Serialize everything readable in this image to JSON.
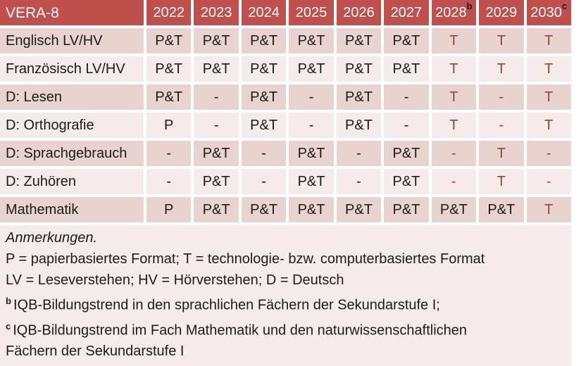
{
  "table": {
    "title": "VERA-8",
    "years": [
      "2022",
      "2023",
      "2024",
      "2025",
      "2026",
      "2027",
      "2028",
      "2029",
      "2030"
    ],
    "year_superscripts": [
      "",
      "",
      "",
      "",
      "",
      "",
      "b",
      "",
      "c"
    ],
    "rows": [
      {
        "label": "Englisch LV/HV",
        "cells": [
          {
            "t": "P&T",
            "red": false
          },
          {
            "t": "P&T",
            "red": false
          },
          {
            "t": "P&T",
            "red": false
          },
          {
            "t": "P&T",
            "red": false
          },
          {
            "t": "P&T",
            "red": false
          },
          {
            "t": "P&T",
            "red": false
          },
          {
            "t": "T",
            "red": true
          },
          {
            "t": "T",
            "red": true
          },
          {
            "t": "T",
            "red": true
          }
        ]
      },
      {
        "label": "Französisch LV/HV",
        "cells": [
          {
            "t": "P&T",
            "red": false
          },
          {
            "t": "P&T",
            "red": false
          },
          {
            "t": "P&T",
            "red": false
          },
          {
            "t": "P&T",
            "red": false
          },
          {
            "t": "P&T",
            "red": false
          },
          {
            "t": "P&T",
            "red": false
          },
          {
            "t": "T",
            "red": true
          },
          {
            "t": "T",
            "red": true
          },
          {
            "t": "T",
            "red": true
          }
        ]
      },
      {
        "label": "D: Lesen",
        "cells": [
          {
            "t": "P&T",
            "red": false
          },
          {
            "t": "-",
            "red": false
          },
          {
            "t": "P&T",
            "red": false
          },
          {
            "t": "-",
            "red": false
          },
          {
            "t": "P&T",
            "red": false
          },
          {
            "t": "-",
            "red": false
          },
          {
            "t": "T",
            "red": true
          },
          {
            "t": "-",
            "red": true
          },
          {
            "t": "T",
            "red": true
          }
        ]
      },
      {
        "label": "D: Orthografie",
        "cells": [
          {
            "t": "P",
            "red": false
          },
          {
            "t": "-",
            "red": false
          },
          {
            "t": "P&T",
            "red": false
          },
          {
            "t": "-",
            "red": false
          },
          {
            "t": "P&T",
            "red": false
          },
          {
            "t": "-",
            "red": false
          },
          {
            "t": "T",
            "red": true
          },
          {
            "t": "-",
            "red": true
          },
          {
            "t": "T",
            "red": true
          }
        ]
      },
      {
        "label": "D: Sprachgebrauch",
        "cells": [
          {
            "t": "-",
            "red": false
          },
          {
            "t": "P&T",
            "red": false
          },
          {
            "t": "-",
            "red": false
          },
          {
            "t": "P&T",
            "red": false
          },
          {
            "t": "-",
            "red": false
          },
          {
            "t": "P&T",
            "red": false
          },
          {
            "t": "-",
            "red": true
          },
          {
            "t": "T",
            "red": true
          },
          {
            "t": "-",
            "red": true
          }
        ]
      },
      {
        "label": "D: Zuhören",
        "cells": [
          {
            "t": "-",
            "red": false
          },
          {
            "t": "P&T",
            "red": false
          },
          {
            "t": "-",
            "red": false
          },
          {
            "t": "P&T",
            "red": false
          },
          {
            "t": "-",
            "red": false
          },
          {
            "t": "P&T",
            "red": false
          },
          {
            "t": "-",
            "red": true
          },
          {
            "t": "T",
            "red": true
          },
          {
            "t": "-",
            "red": true
          }
        ]
      },
      {
        "label": "Mathematik",
        "cells": [
          {
            "t": "P",
            "red": false
          },
          {
            "t": "P&T",
            "red": false
          },
          {
            "t": "P&T",
            "red": false
          },
          {
            "t": "P&T",
            "red": false
          },
          {
            "t": "P&T",
            "red": false
          },
          {
            "t": "P&T",
            "red": false
          },
          {
            "t": "P&T",
            "red": false
          },
          {
            "t": "P&T",
            "red": false
          },
          {
            "t": "T",
            "red": true
          }
        ]
      }
    ]
  },
  "notes": {
    "heading": "Anmerkungen.",
    "line1": "P = papierbasiertes Format; T = technologie- bzw. computerbasiertes Format",
    "line2": "LV = Leseverstehen; HV = Hörverstehen; D = Deutsch",
    "note_b_marker": "b",
    "note_b_text": "IQB-Bildungstrend in den sprachlichen Fächern der Sekundarstufe I;",
    "note_c_marker": "c",
    "note_c_line1": "IQB-Bildungstrend im Fach Mathematik und den naturwissenschaftlichen",
    "note_c_line2": "Fächern der Sekundarstufe I"
  },
  "colors": {
    "header_bg": "#C0504D",
    "header_text": "#FFFFFF",
    "row_dark": "#E8D3D1",
    "row_light": "#F4EBEA",
    "notes_bg": "#F4EBEA",
    "text_black": "#1B1B1B",
    "text_red": "#A03E3B"
  }
}
